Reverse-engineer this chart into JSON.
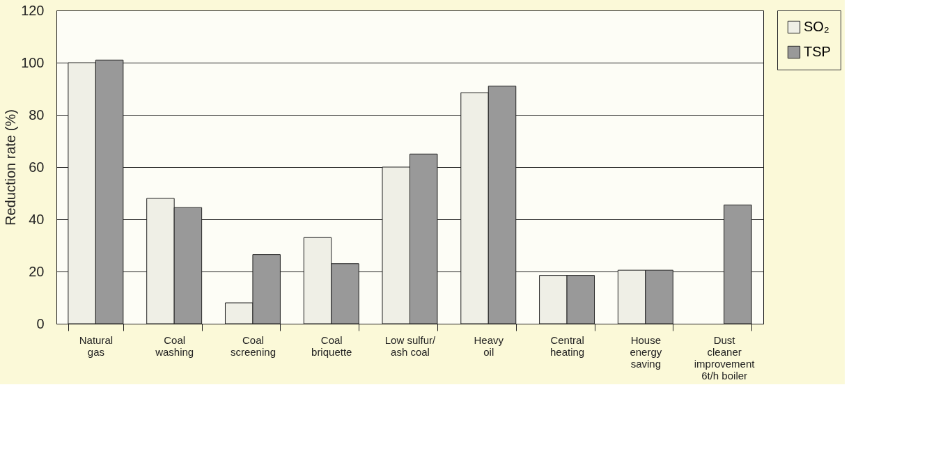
{
  "chart_data": {
    "type": "bar",
    "ylabel": "Reduction rate (%)",
    "categories": [
      "Natural\ngas",
      "Coal\nwashing",
      "Coal\nscreening",
      "Coal\nbriquette",
      "Low sulfur/\nash coal",
      "Heavy\noil",
      "Central\nheating",
      "House\nenergy\nsaving",
      "Dust\ncleaner\nimprovement\n6t/h boiler"
    ],
    "series": [
      {
        "name": "SO₂",
        "color": "#efefe6",
        "values": [
          100,
          48,
          8,
          33,
          60,
          88.5,
          18.5,
          20.5,
          null
        ]
      },
      {
        "name": "TSP",
        "color": "#999999",
        "values": [
          101,
          44.5,
          26.5,
          23,
          65,
          91,
          18.5,
          20.5,
          45.5
        ]
      }
    ],
    "ylim": [
      0,
      120
    ],
    "yticks": [
      0,
      20,
      40,
      60,
      80,
      100,
      120
    ],
    "grid": "y",
    "legend": "right"
  }
}
